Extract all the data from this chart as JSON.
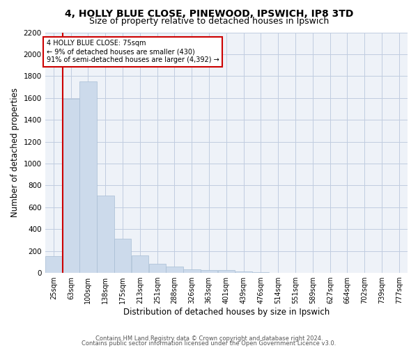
{
  "title_line1": "4, HOLLY BLUE CLOSE, PINEWOOD, IPSWICH, IP8 3TD",
  "title_line2": "Size of property relative to detached houses in Ipswich",
  "xlabel": "Distribution of detached houses by size in Ipswich",
  "ylabel": "Number of detached properties",
  "annotation_title": "4 HOLLY BLUE CLOSE: 75sqm",
  "annotation_line2": "← 9% of detached houses are smaller (430)",
  "annotation_line3": "91% of semi-detached houses are larger (4,392) →",
  "footer_line1": "Contains HM Land Registry data © Crown copyright and database right 2024.",
  "footer_line2": "Contains public sector information licensed under the Open Government Licence v3.0.",
  "bar_color": "#ccdaeb",
  "bar_edgecolor": "#a8bdd4",
  "vline_color": "#cc0000",
  "vline_x_index": 1,
  "annotation_box_edgecolor": "#cc0000",
  "background_color": "#eef2f8",
  "categories": [
    "25sqm",
    "63sqm",
    "100sqm",
    "138sqm",
    "175sqm",
    "213sqm",
    "251sqm",
    "288sqm",
    "326sqm",
    "363sqm",
    "401sqm",
    "439sqm",
    "476sqm",
    "514sqm",
    "551sqm",
    "589sqm",
    "627sqm",
    "664sqm",
    "702sqm",
    "739sqm",
    "777sqm"
  ],
  "bin_left_edges": [
    25,
    63,
    100,
    138,
    175,
    213,
    251,
    288,
    326,
    363,
    401,
    439,
    476,
    514,
    551,
    589,
    627,
    664,
    702,
    739,
    777
  ],
  "bin_width": 37,
  "values": [
    155,
    1590,
    1750,
    710,
    315,
    160,
    85,
    55,
    35,
    25,
    25,
    15,
    10,
    0,
    0,
    0,
    0,
    0,
    0,
    0,
    0
  ],
  "ylim": [
    0,
    2200
  ],
  "yticks": [
    0,
    200,
    400,
    600,
    800,
    1000,
    1200,
    1400,
    1600,
    1800,
    2000,
    2200
  ],
  "grid_color": "#c0cce0",
  "title_fontsize": 10,
  "subtitle_fontsize": 9,
  "axis_label_fontsize": 8.5,
  "tick_fontsize": 7.5,
  "footer_fontsize": 6,
  "vline_xcoord": 75
}
